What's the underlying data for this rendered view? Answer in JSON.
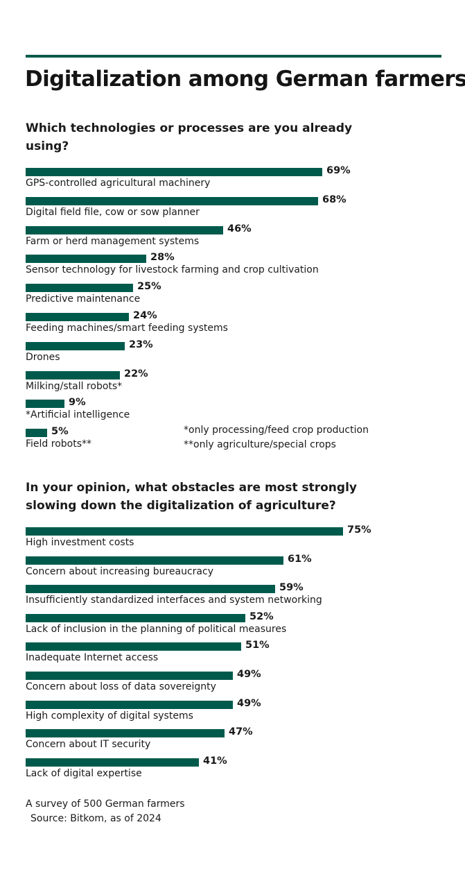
{
  "title": "Digitalization among German farmers",
  "colors": {
    "bar": "#005a4c",
    "rule": "#005a4c",
    "text": "#1a1a1a"
  },
  "chart_data": [
    {
      "type": "bar",
      "orientation": "horizontal",
      "title": "Which technologies or processes are you already using?",
      "categories": [
        "GPS-controlled agricultural machinery",
        "Digital field file, cow or sow planner",
        "Farm or herd management systems",
        "Sensor technology for livestock farming and crop cultivation",
        "Predictive maintenance",
        "Feeding machines/smart feeding systems",
        "Drones",
        "Milking/stall robots*",
        "*Artificial intelligence",
        "Field robots**"
      ],
      "values": [
        69,
        68,
        46,
        28,
        25,
        24,
        23,
        22,
        9,
        5
      ],
      "value_labels": [
        "69%",
        "68%",
        "46%",
        "28%",
        "25%",
        "24%",
        "23%",
        "22%",
        "9%",
        "5%"
      ],
      "unit": "%",
      "xlabel": "",
      "ylabel": "",
      "grid": false,
      "legend": false,
      "footnotes": [
        "*only processing/feed crop production",
        "**only agriculture/special crops"
      ]
    },
    {
      "type": "bar",
      "orientation": "horizontal",
      "title": "In your opinion, what obstacles are most strongly slowing down the digitalization of agriculture?",
      "categories": [
        "High investment costs",
        "Concern about increasing bureaucracy",
        "Insufficiently standardized interfaces and system networking",
        "Lack of inclusion in the planning of political measures",
        "Inadequate Internet access",
        "Concern about loss of data sovereignty",
        "High complexity of digital systems",
        "Concern about IT security",
        "Lack of digital expertise"
      ],
      "values": [
        75,
        61,
        59,
        52,
        51,
        49,
        49,
        47,
        41
      ],
      "value_labels": [
        "75%",
        "61%",
        "59%",
        "52%",
        "51%",
        "49%",
        "49%",
        "47%",
        "41%"
      ],
      "unit": "%",
      "xlabel": "",
      "ylabel": "",
      "grid": false,
      "legend": false
    }
  ],
  "section1": {
    "title_line1": "Which technologies or processes are you already",
    "title_line2": "using?",
    "footnote1": "*only processing/feed crop production",
    "footnote2": "**only agriculture/special crops"
  },
  "section2": {
    "title_line1": "In your opinion, what obstacles are most strongly",
    "title_line2": "slowing down the digitalization of agriculture?"
  },
  "footer": {
    "line1": "A survey of 500 German farmers",
    "line2": "Source: Bitkom, as of 2024"
  }
}
